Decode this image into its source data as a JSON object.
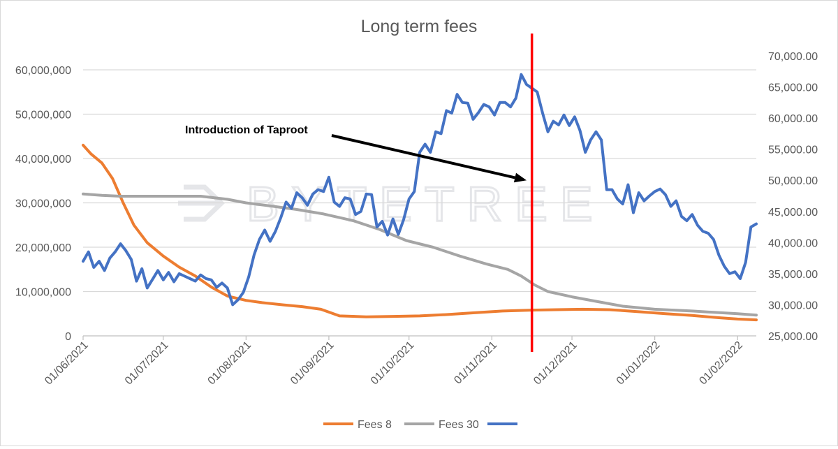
{
  "chart_data": {
    "type": "line",
    "title": "Long term fees",
    "xlabel": "",
    "ylabel": "",
    "y2label": "",
    "x_start": "2021-06-01",
    "x_end": "2022-02-08",
    "ylim": [
      0,
      60000000
    ],
    "y2lim": [
      25000,
      70000
    ],
    "x_tick_labels": [
      "01/06/2021",
      "01/07/2021",
      "01/08/2021",
      "01/09/2021",
      "01/10/2021",
      "01/11/2021",
      "01/12/2021",
      "01/01/2022",
      "01/02/2022"
    ],
    "x_tick_dates": [
      "2021-06-01",
      "2021-07-01",
      "2021-08-01",
      "2021-09-01",
      "2021-10-01",
      "2021-11-01",
      "2021-12-01",
      "2022-01-01",
      "2022-02-01"
    ],
    "y_tick_labels": [
      "0",
      "10,000,000",
      "20,000,000",
      "30,000,000",
      "40,000,000",
      "50,000,000",
      "60,000,000"
    ],
    "y_tick_values": [
      0,
      10000000,
      20000000,
      30000000,
      40000000,
      50000000,
      60000000
    ],
    "y2_tick_labels": [
      "25,000.00",
      "30,000.00",
      "35,000.00",
      "40,000.00",
      "45,000.00",
      "50,000.00",
      "55,000.00",
      "60,000.00",
      "65,000.00",
      "70,000.00"
    ],
    "y2_tick_values": [
      25000,
      30000,
      35000,
      40000,
      45000,
      50000,
      55000,
      60000,
      65000,
      70000
    ],
    "grid": "horizontal",
    "legend_position": "bottom",
    "series": [
      {
        "name": "Fees 8",
        "axis": "left",
        "color": "#ed7d31",
        "x": [
          "2021-06-01",
          "2021-06-04",
          "2021-06-08",
          "2021-06-12",
          "2021-06-16",
          "2021-06-20",
          "2021-06-25",
          "2021-07-01",
          "2021-07-07",
          "2021-07-13",
          "2021-07-19",
          "2021-07-25",
          "2021-08-01",
          "2021-08-07",
          "2021-08-15",
          "2021-08-22",
          "2021-08-29",
          "2021-09-05",
          "2021-09-15",
          "2021-09-25",
          "2021-10-05",
          "2021-10-15",
          "2021-10-25",
          "2021-11-05",
          "2021-11-15",
          "2021-11-25",
          "2021-12-05",
          "2021-12-15",
          "2021-12-25",
          "2022-01-05",
          "2022-01-15",
          "2022-01-25",
          "2022-02-01",
          "2022-02-08"
        ],
        "values": [
          43000000,
          41000000,
          39000000,
          35500000,
          30000000,
          25000000,
          21000000,
          18000000,
          15500000,
          13500000,
          11000000,
          9000000,
          8000000,
          7500000,
          7000000,
          6600000,
          6000000,
          4500000,
          4300000,
          4400000,
          4500000,
          4800000,
          5200000,
          5600000,
          5800000,
          5900000,
          6000000,
          5900000,
          5500000,
          5000000,
          4600000,
          4100000,
          3800000,
          3600000
        ]
      },
      {
        "name": "Fees 30",
        "axis": "left",
        "color": "#a5a5a5",
        "x": [
          "2021-06-01",
          "2021-06-08",
          "2021-06-15",
          "2021-07-01",
          "2021-07-15",
          "2021-07-25",
          "2021-08-01",
          "2021-08-10",
          "2021-08-20",
          "2021-08-30",
          "2021-09-10",
          "2021-09-20",
          "2021-09-30",
          "2021-10-10",
          "2021-10-20",
          "2021-10-30",
          "2021-11-07",
          "2021-11-12",
          "2021-11-17",
          "2021-11-22",
          "2021-12-01",
          "2021-12-10",
          "2021-12-20",
          "2022-01-01",
          "2022-01-15",
          "2022-02-01",
          "2022-02-08"
        ],
        "values": [
          32000000,
          31700000,
          31500000,
          31500000,
          31500000,
          30800000,
          30000000,
          29300000,
          28500000,
          27500000,
          26000000,
          24000000,
          21500000,
          20000000,
          18000000,
          16200000,
          15000000,
          13500000,
          11500000,
          10000000,
          8800000,
          7800000,
          6700000,
          6000000,
          5600000,
          5000000,
          4700000
        ]
      },
      {
        "name": "",
        "axis": "right",
        "color": "#4472c4",
        "x": [
          "2021-06-01",
          "2021-06-03",
          "2021-06-05",
          "2021-06-07",
          "2021-06-09",
          "2021-06-11",
          "2021-06-13",
          "2021-06-15",
          "2021-06-17",
          "2021-06-19",
          "2021-06-21",
          "2021-06-23",
          "2021-06-25",
          "2021-06-27",
          "2021-06-29",
          "2021-07-01",
          "2021-07-03",
          "2021-07-05",
          "2021-07-07",
          "2021-07-09",
          "2021-07-11",
          "2021-07-13",
          "2021-07-15",
          "2021-07-17",
          "2021-07-19",
          "2021-07-21",
          "2021-07-23",
          "2021-07-25",
          "2021-07-27",
          "2021-07-29",
          "2021-07-31",
          "2021-08-02",
          "2021-08-04",
          "2021-08-06",
          "2021-08-08",
          "2021-08-10",
          "2021-08-12",
          "2021-08-14",
          "2021-08-16",
          "2021-08-18",
          "2021-08-20",
          "2021-08-22",
          "2021-08-24",
          "2021-08-26",
          "2021-08-28",
          "2021-08-30",
          "2021-09-01",
          "2021-09-03",
          "2021-09-05",
          "2021-09-07",
          "2021-09-09",
          "2021-09-11",
          "2021-09-13",
          "2021-09-15",
          "2021-09-17",
          "2021-09-19",
          "2021-09-21",
          "2021-09-23",
          "2021-09-25",
          "2021-09-27",
          "2021-09-29",
          "2021-10-01",
          "2021-10-03",
          "2021-10-05",
          "2021-10-07",
          "2021-10-09",
          "2021-10-11",
          "2021-10-13",
          "2021-10-15",
          "2021-10-17",
          "2021-10-19",
          "2021-10-21",
          "2021-10-23",
          "2021-10-25",
          "2021-10-27",
          "2021-10-29",
          "2021-10-31",
          "2021-11-02",
          "2021-11-04",
          "2021-11-06",
          "2021-11-08",
          "2021-11-10",
          "2021-11-12",
          "2021-11-14",
          "2021-11-16",
          "2021-11-18",
          "2021-11-20",
          "2021-11-22",
          "2021-11-24",
          "2021-11-26",
          "2021-11-28",
          "2021-11-30",
          "2021-12-02",
          "2021-12-04",
          "2021-12-06",
          "2021-12-08",
          "2021-12-10",
          "2021-12-12",
          "2021-12-14",
          "2021-12-16",
          "2021-12-18",
          "2021-12-20",
          "2021-12-22",
          "2021-12-24",
          "2021-12-26",
          "2021-12-28",
          "2021-12-30",
          "2022-01-01",
          "2022-01-03",
          "2022-01-05",
          "2022-01-07",
          "2022-01-09",
          "2022-01-11",
          "2022-01-13",
          "2022-01-15",
          "2022-01-17",
          "2022-01-19",
          "2022-01-21",
          "2022-01-23",
          "2022-01-25",
          "2022-01-27",
          "2022-01-29",
          "2022-01-31",
          "2022-02-02",
          "2022-02-04",
          "2022-02-06",
          "2022-02-08"
        ],
        "values": [
          37000,
          38500,
          36000,
          37000,
          35500,
          37500,
          38500,
          39800,
          38700,
          37300,
          33800,
          35800,
          32700,
          34100,
          35500,
          34000,
          35200,
          33700,
          35000,
          34600,
          34200,
          33800,
          34800,
          34200,
          34000,
          32800,
          33500,
          32700,
          30000,
          30800,
          32000,
          34500,
          38000,
          40500,
          42000,
          40200,
          41800,
          44000,
          46500,
          45500,
          48000,
          47200,
          46000,
          47800,
          48500,
          48200,
          50500,
          46500,
          45800,
          47200,
          47000,
          44500,
          45000,
          47800,
          47700,
          42500,
          43400,
          41200,
          43800,
          41300,
          43700,
          47000,
          48200,
          54500,
          55800,
          54500,
          57800,
          57500,
          61200,
          60800,
          63800,
          62500,
          62400,
          59800,
          60900,
          62200,
          61800,
          60500,
          62500,
          62500,
          61800,
          63200,
          67000,
          65400,
          64800,
          64200,
          60800,
          57800,
          59500,
          58900,
          60500,
          58800,
          60200,
          58000,
          54500,
          56500,
          57800,
          56500,
          48500,
          48500,
          47000,
          46200,
          49300,
          44800,
          48000,
          46700,
          47500,
          48200,
          48600,
          47700,
          45800,
          46700,
          44200,
          43500,
          44500,
          42800,
          41800,
          41500,
          40500,
          38000,
          36200,
          35000,
          35300,
          34200,
          36800,
          42500,
          43000
        ]
      }
    ],
    "annotations": [
      {
        "text": "Introduction of Taproot",
        "arrow_to_date": "2021-11-14",
        "arrow_to_y2": 50000
      },
      {
        "type": "vertical_line",
        "date": "2021-11-16",
        "color": "#ff0000"
      }
    ],
    "watermark": "BYTETREE"
  }
}
